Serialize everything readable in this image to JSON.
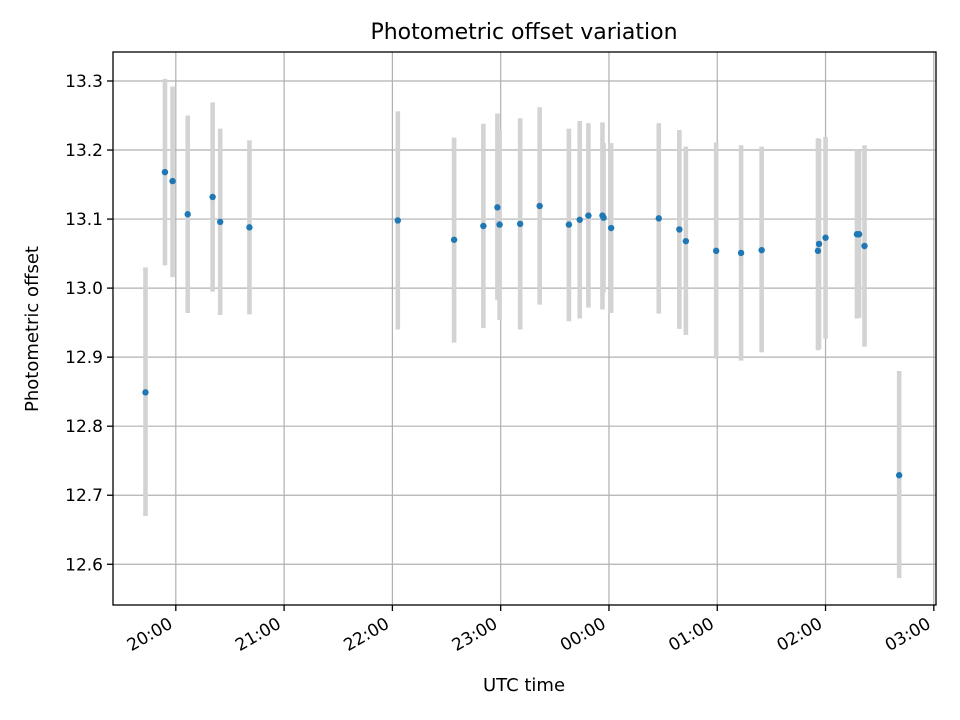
{
  "chart_data": {
    "type": "scatter",
    "title": "Photometric offset variation",
    "xlabel": "UTC time",
    "ylabel": "Photometric offset",
    "x_axis": "time (hours since 00:00 UTC; ticks wrap past midnight)",
    "xlim": [
      19.42,
      27.02
    ],
    "ylim": [
      12.541,
      13.342
    ],
    "x_ticks": [
      20,
      21,
      22,
      23,
      24,
      25,
      26,
      27
    ],
    "x_tick_labels": [
      "20:00",
      "21:00",
      "22:00",
      "23:00",
      "00:00",
      "01:00",
      "02:00",
      "03:00"
    ],
    "y_ticks": [
      12.6,
      12.7,
      12.8,
      12.9,
      13.0,
      13.1,
      13.2,
      13.3
    ],
    "y_tick_labels": [
      "12.6",
      "12.7",
      "12.8",
      "12.9",
      "13.0",
      "13.1",
      "13.2",
      "13.3"
    ],
    "grid": true,
    "series": [
      {
        "color": "#1f77b4",
        "errorbar_color": "#d3d3d3",
        "points": [
          {
            "x": 19.72,
            "y": 12.849,
            "ylo": 12.67,
            "yhi": 13.03
          },
          {
            "x": 19.9,
            "y": 13.168,
            "ylo": 13.033,
            "yhi": 13.303
          },
          {
            "x": 19.97,
            "y": 13.155,
            "ylo": 13.016,
            "yhi": 13.292
          },
          {
            "x": 20.11,
            "y": 13.107,
            "ylo": 12.964,
            "yhi": 13.25
          },
          {
            "x": 20.34,
            "y": 13.132,
            "ylo": 12.995,
            "yhi": 13.269
          },
          {
            "x": 20.41,
            "y": 13.096,
            "ylo": 12.961,
            "yhi": 13.231
          },
          {
            "x": 20.68,
            "y": 13.088,
            "ylo": 12.962,
            "yhi": 13.214
          },
          {
            "x": 22.05,
            "y": 13.098,
            "ylo": 12.94,
            "yhi": 13.256
          },
          {
            "x": 22.57,
            "y": 13.07,
            "ylo": 12.921,
            "yhi": 13.218
          },
          {
            "x": 22.84,
            "y": 13.09,
            "ylo": 12.942,
            "yhi": 13.238
          },
          {
            "x": 22.97,
            "y": 13.117,
            "ylo": 12.983,
            "yhi": 13.253
          },
          {
            "x": 22.99,
            "y": 13.092,
            "ylo": 12.954,
            "yhi": 13.23
          },
          {
            "x": 23.18,
            "y": 13.093,
            "ylo": 12.94,
            "yhi": 13.246
          },
          {
            "x": 23.36,
            "y": 13.119,
            "ylo": 12.976,
            "yhi": 13.262
          },
          {
            "x": 23.63,
            "y": 13.092,
            "ylo": 12.952,
            "yhi": 13.231
          },
          {
            "x": 23.73,
            "y": 13.099,
            "ylo": 12.956,
            "yhi": 13.242
          },
          {
            "x": 23.81,
            "y": 13.105,
            "ylo": 12.972,
            "yhi": 13.239
          },
          {
            "x": 23.94,
            "y": 13.105,
            "ylo": 12.969,
            "yhi": 13.24
          },
          {
            "x": 23.95,
            "y": 13.102,
            "ylo": 12.994,
            "yhi": 13.21
          },
          {
            "x": 24.02,
            "y": 13.087,
            "ylo": 12.964,
            "yhi": 13.21
          },
          {
            "x": 24.46,
            "y": 13.101,
            "ylo": 12.963,
            "yhi": 13.239
          },
          {
            "x": 24.65,
            "y": 13.085,
            "ylo": 12.941,
            "yhi": 13.229
          },
          {
            "x": 24.71,
            "y": 13.068,
            "ylo": 12.932,
            "yhi": 13.205
          },
          {
            "x": 24.99,
            "y": 13.054,
            "ylo": 12.898,
            "yhi": 13.211
          },
          {
            "x": 25.22,
            "y": 13.051,
            "ylo": 12.895,
            "yhi": 13.207
          },
          {
            "x": 25.41,
            "y": 13.055,
            "ylo": 12.907,
            "yhi": 13.205
          },
          {
            "x": 25.93,
            "y": 13.054,
            "ylo": 12.91,
            "yhi": 13.217
          },
          {
            "x": 25.94,
            "y": 13.064,
            "ylo": 12.912,
            "yhi": 13.216
          },
          {
            "x": 26.0,
            "y": 13.073,
            "ylo": 12.927,
            "yhi": 13.219
          },
          {
            "x": 26.29,
            "y": 13.078,
            "ylo": 12.956,
            "yhi": 13.2
          },
          {
            "x": 26.31,
            "y": 13.078,
            "ylo": 12.957,
            "yhi": 13.199
          },
          {
            "x": 26.36,
            "y": 13.061,
            "ylo": 12.915,
            "yhi": 13.207
          },
          {
            "x": 26.68,
            "y": 12.729,
            "ylo": 12.58,
            "yhi": 12.88
          }
        ]
      }
    ]
  }
}
